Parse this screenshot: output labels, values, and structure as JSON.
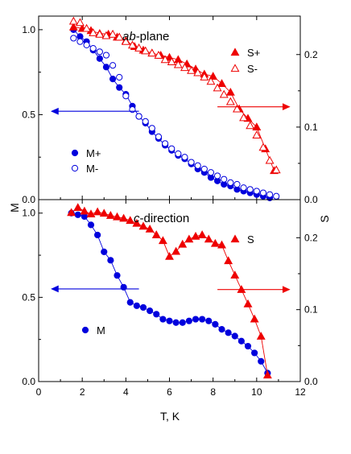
{
  "chart_data": [
    {
      "type": "scatter",
      "panel": "top",
      "annotation_italic": "ab",
      "annotation_rest": "-plane",
      "xlim": [
        0,
        12
      ],
      "y_left_lim": [
        0,
        1.08
      ],
      "y_right_lim": [
        0,
        0.253
      ],
      "y_left_ticks": [
        "0.0",
        "0.5",
        "1.0"
      ],
      "y_right_ticks": [
        "0.0",
        "0.1",
        "0.2"
      ],
      "y_left_tick_values": [
        0,
        0.5,
        1.0
      ],
      "y_right_tick_values": [
        0,
        0.1,
        0.2
      ],
      "left_arrow_y": 0.52,
      "right_arrow_y": 0.128,
      "series": [
        {
          "name": "M+",
          "axis": "left",
          "marker": "circle",
          "filled": true,
          "color": "#0000dd",
          "x": [
            1.6,
            1.9,
            2.2,
            2.5,
            2.8,
            3.1,
            3.4,
            3.7,
            4.0,
            4.3,
            4.6,
            4.9,
            5.2,
            5.5,
            5.8,
            6.1,
            6.4,
            6.7,
            7.0,
            7.3,
            7.6,
            7.9,
            8.2,
            8.5,
            8.8,
            9.1,
            9.4,
            9.7,
            10.0,
            10.3,
            10.6
          ],
          "y": [
            1.0,
            0.96,
            0.93,
            0.88,
            0.83,
            0.78,
            0.71,
            0.66,
            0.62,
            0.55,
            0.49,
            0.45,
            0.4,
            0.36,
            0.32,
            0.29,
            0.26,
            0.24,
            0.21,
            0.18,
            0.16,
            0.13,
            0.11,
            0.09,
            0.08,
            0.06,
            0.05,
            0.04,
            0.03,
            0.02,
            0.01
          ]
        },
        {
          "name": "M-",
          "axis": "left",
          "marker": "circle",
          "filled": false,
          "color": "#0000dd",
          "x": [
            1.6,
            1.9,
            2.2,
            2.5,
            2.8,
            3.1,
            3.4,
            3.7,
            4.0,
            4.3,
            4.6,
            4.9,
            5.2,
            5.5,
            5.8,
            6.1,
            6.4,
            6.7,
            7.0,
            7.3,
            7.6,
            7.9,
            8.2,
            8.5,
            8.8,
            9.1,
            9.4,
            9.7,
            10.0,
            10.3,
            10.6,
            10.9
          ],
          "y": [
            0.95,
            0.93,
            0.91,
            0.89,
            0.87,
            0.85,
            0.79,
            0.72,
            0.61,
            0.53,
            0.49,
            0.46,
            0.42,
            0.37,
            0.33,
            0.3,
            0.27,
            0.25,
            0.22,
            0.2,
            0.18,
            0.16,
            0.14,
            0.12,
            0.1,
            0.09,
            0.07,
            0.06,
            0.05,
            0.04,
            0.03,
            0.02
          ]
        },
        {
          "name": "S+",
          "axis": "right",
          "marker": "triangle",
          "filled": true,
          "color": "#ee0000",
          "x": [
            1.6,
            2.0,
            2.4,
            2.8,
            3.2,
            3.6,
            4.0,
            4.4,
            4.8,
            5.2,
            5.6,
            6.0,
            6.4,
            6.8,
            7.2,
            7.6,
            8.0,
            8.4,
            8.8,
            9.2,
            9.6,
            10.0,
            10.4,
            10.8
          ],
          "y": [
            0.238,
            0.236,
            0.233,
            0.229,
            0.228,
            0.224,
            0.219,
            0.211,
            0.206,
            0.202,
            0.199,
            0.196,
            0.193,
            0.187,
            0.18,
            0.173,
            0.17,
            0.16,
            0.148,
            0.125,
            0.112,
            0.1,
            0.07,
            0.04
          ]
        },
        {
          "name": "S-",
          "axis": "right",
          "marker": "triangle",
          "filled": false,
          "color": "#ee0000",
          "x": [
            1.6,
            1.9,
            2.2,
            2.5,
            2.8,
            3.1,
            3.4,
            3.7,
            4.0,
            4.3,
            4.6,
            4.9,
            5.2,
            5.5,
            5.8,
            6.1,
            6.4,
            6.7,
            7.0,
            7.3,
            7.6,
            7.9,
            8.2,
            8.5,
            8.8,
            9.1,
            9.4,
            9.7,
            10.0,
            10.3,
            10.6,
            10.9
          ],
          "y": [
            0.246,
            0.244,
            0.236,
            0.23,
            0.228,
            0.226,
            0.228,
            0.224,
            0.218,
            0.213,
            0.209,
            0.205,
            0.202,
            0.199,
            0.193,
            0.19,
            0.186,
            0.182,
            0.178,
            0.175,
            0.169,
            0.163,
            0.154,
            0.145,
            0.135,
            0.125,
            0.113,
            0.102,
            0.089,
            0.072,
            0.054,
            0.041
          ]
        }
      ]
    },
    {
      "type": "scatter",
      "panel": "bottom",
      "annotation_italic": "c",
      "annotation_rest": "-direction",
      "xlabel": "T, K",
      "ylabel_left": "M",
      "ylabel_right": "S",
      "xlim": [
        0,
        12
      ],
      "x_ticks": [
        "0",
        "2",
        "4",
        "6",
        "8",
        "10",
        "12"
      ],
      "x_tick_values": [
        0,
        2,
        4,
        6,
        8,
        10,
        12
      ],
      "y_left_lim": [
        0,
        1.08
      ],
      "y_right_lim": [
        0,
        0.253
      ],
      "y_left_ticks": [
        "0.0",
        "0.5",
        "1.0"
      ],
      "y_right_ticks": [
        "0.0",
        "0.1",
        "0.2"
      ],
      "y_left_tick_values": [
        0,
        0.5,
        1.0
      ],
      "y_right_tick_values": [
        0,
        0.1,
        0.2
      ],
      "left_arrow_y": 0.55,
      "right_arrow_y": 0.128,
      "series": [
        {
          "name": "M",
          "axis": "left",
          "marker": "circle",
          "filled": true,
          "color": "#0000dd",
          "x": [
            1.5,
            1.8,
            2.1,
            2.4,
            2.7,
            3.0,
            3.3,
            3.6,
            3.9,
            4.2,
            4.5,
            4.8,
            5.1,
            5.4,
            5.7,
            6.0,
            6.3,
            6.6,
            6.9,
            7.2,
            7.5,
            7.8,
            8.1,
            8.4,
            8.7,
            9.0,
            9.3,
            9.6,
            9.9,
            10.2,
            10.5
          ],
          "y": [
            1.0,
            0.99,
            0.98,
            0.93,
            0.87,
            0.77,
            0.72,
            0.63,
            0.56,
            0.47,
            0.45,
            0.44,
            0.42,
            0.4,
            0.37,
            0.36,
            0.35,
            0.35,
            0.36,
            0.37,
            0.37,
            0.36,
            0.34,
            0.31,
            0.29,
            0.27,
            0.24,
            0.21,
            0.17,
            0.12,
            0.05
          ]
        },
        {
          "name": "S",
          "axis": "right",
          "marker": "triangle",
          "filled": true,
          "color": "#ee0000",
          "x": [
            1.5,
            1.8,
            2.1,
            2.4,
            2.7,
            3.0,
            3.3,
            3.6,
            3.9,
            4.2,
            4.5,
            4.8,
            5.1,
            5.4,
            5.7,
            6.0,
            6.3,
            6.6,
            6.9,
            7.2,
            7.5,
            7.8,
            8.1,
            8.4,
            8.7,
            9.0,
            9.3,
            9.6,
            9.9,
            10.2,
            10.5
          ],
          "y": [
            0.235,
            0.242,
            0.237,
            0.233,
            0.236,
            0.234,
            0.231,
            0.229,
            0.227,
            0.224,
            0.22,
            0.216,
            0.212,
            0.204,
            0.196,
            0.174,
            0.181,
            0.191,
            0.198,
            0.202,
            0.204,
            0.198,
            0.192,
            0.19,
            0.168,
            0.148,
            0.128,
            0.108,
            0.087,
            0.063,
            0.009
          ]
        }
      ]
    }
  ]
}
